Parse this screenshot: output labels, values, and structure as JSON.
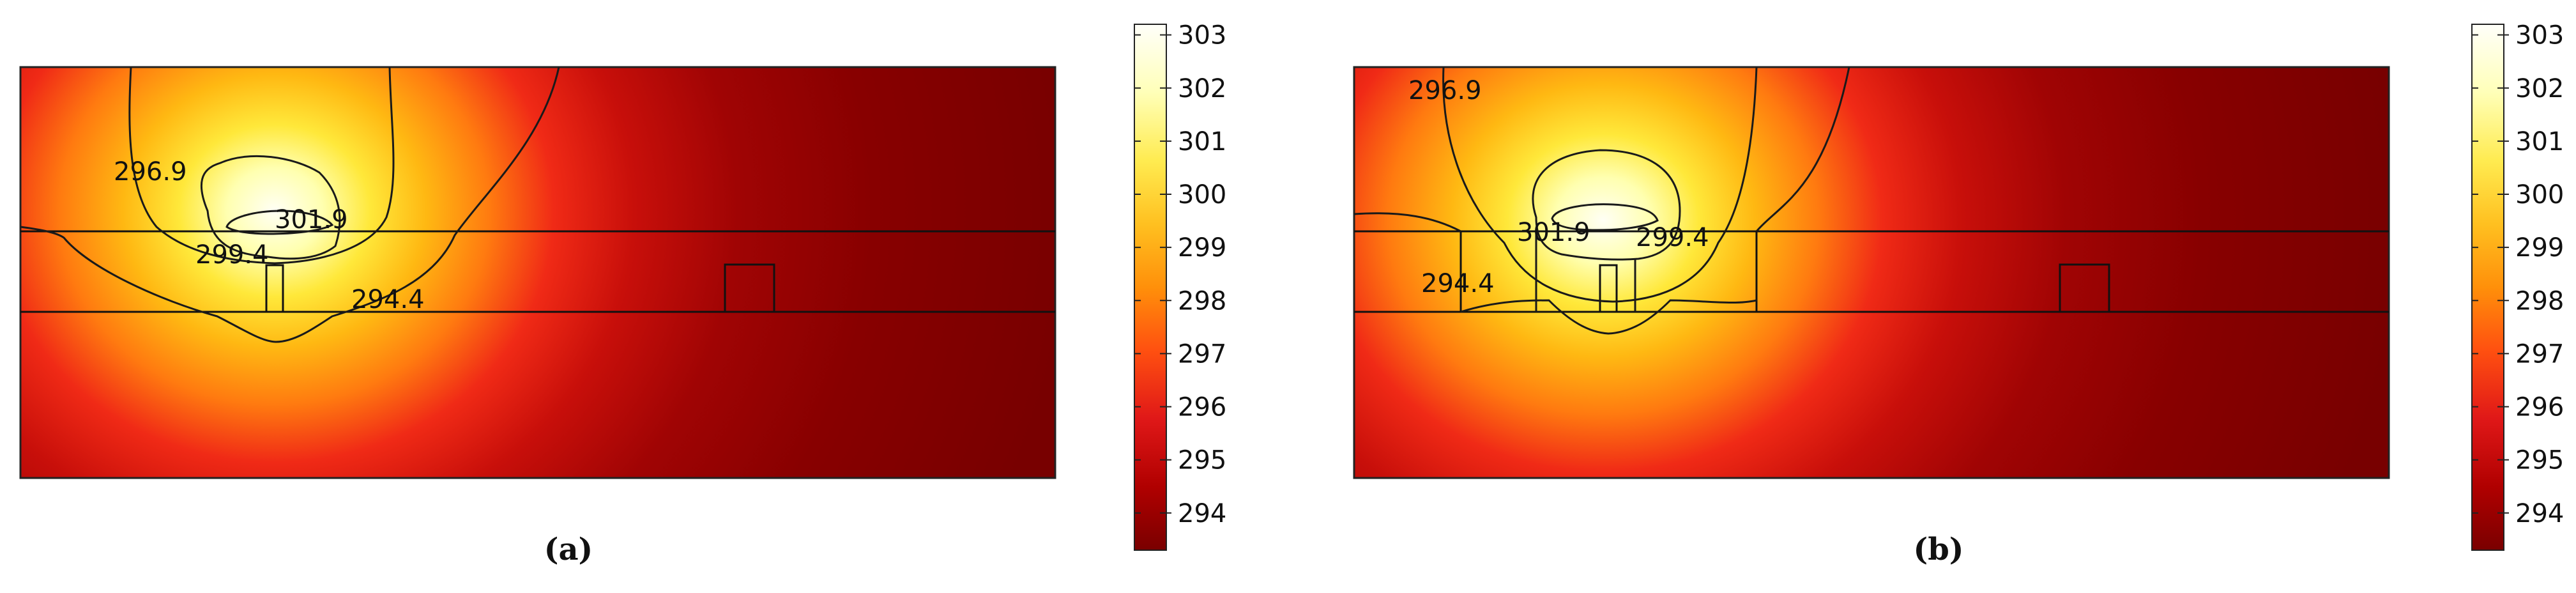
{
  "colorbar": {
    "ticks": [
      "303",
      "302",
      "301",
      "300",
      "299",
      "298",
      "297",
      "296",
      "295",
      "294"
    ],
    "range": [
      293.3,
      303.2
    ],
    "colormap": [
      "#8B0000",
      "#B40000",
      "#E01E1E",
      "#FF5A14",
      "#FF9A0A",
      "#FFC81E",
      "#FFF05A",
      "#FFFFC8",
      "#FFFFF8"
    ]
  },
  "panels": [
    {
      "label": "(a)",
      "contour_labels": [
        "296.9",
        "301.9",
        "299.4",
        "294.4"
      ]
    },
    {
      "label": "(b)",
      "contour_labels": [
        "296.9",
        "301.9",
        "299.4",
        "294.4"
      ]
    }
  ]
}
